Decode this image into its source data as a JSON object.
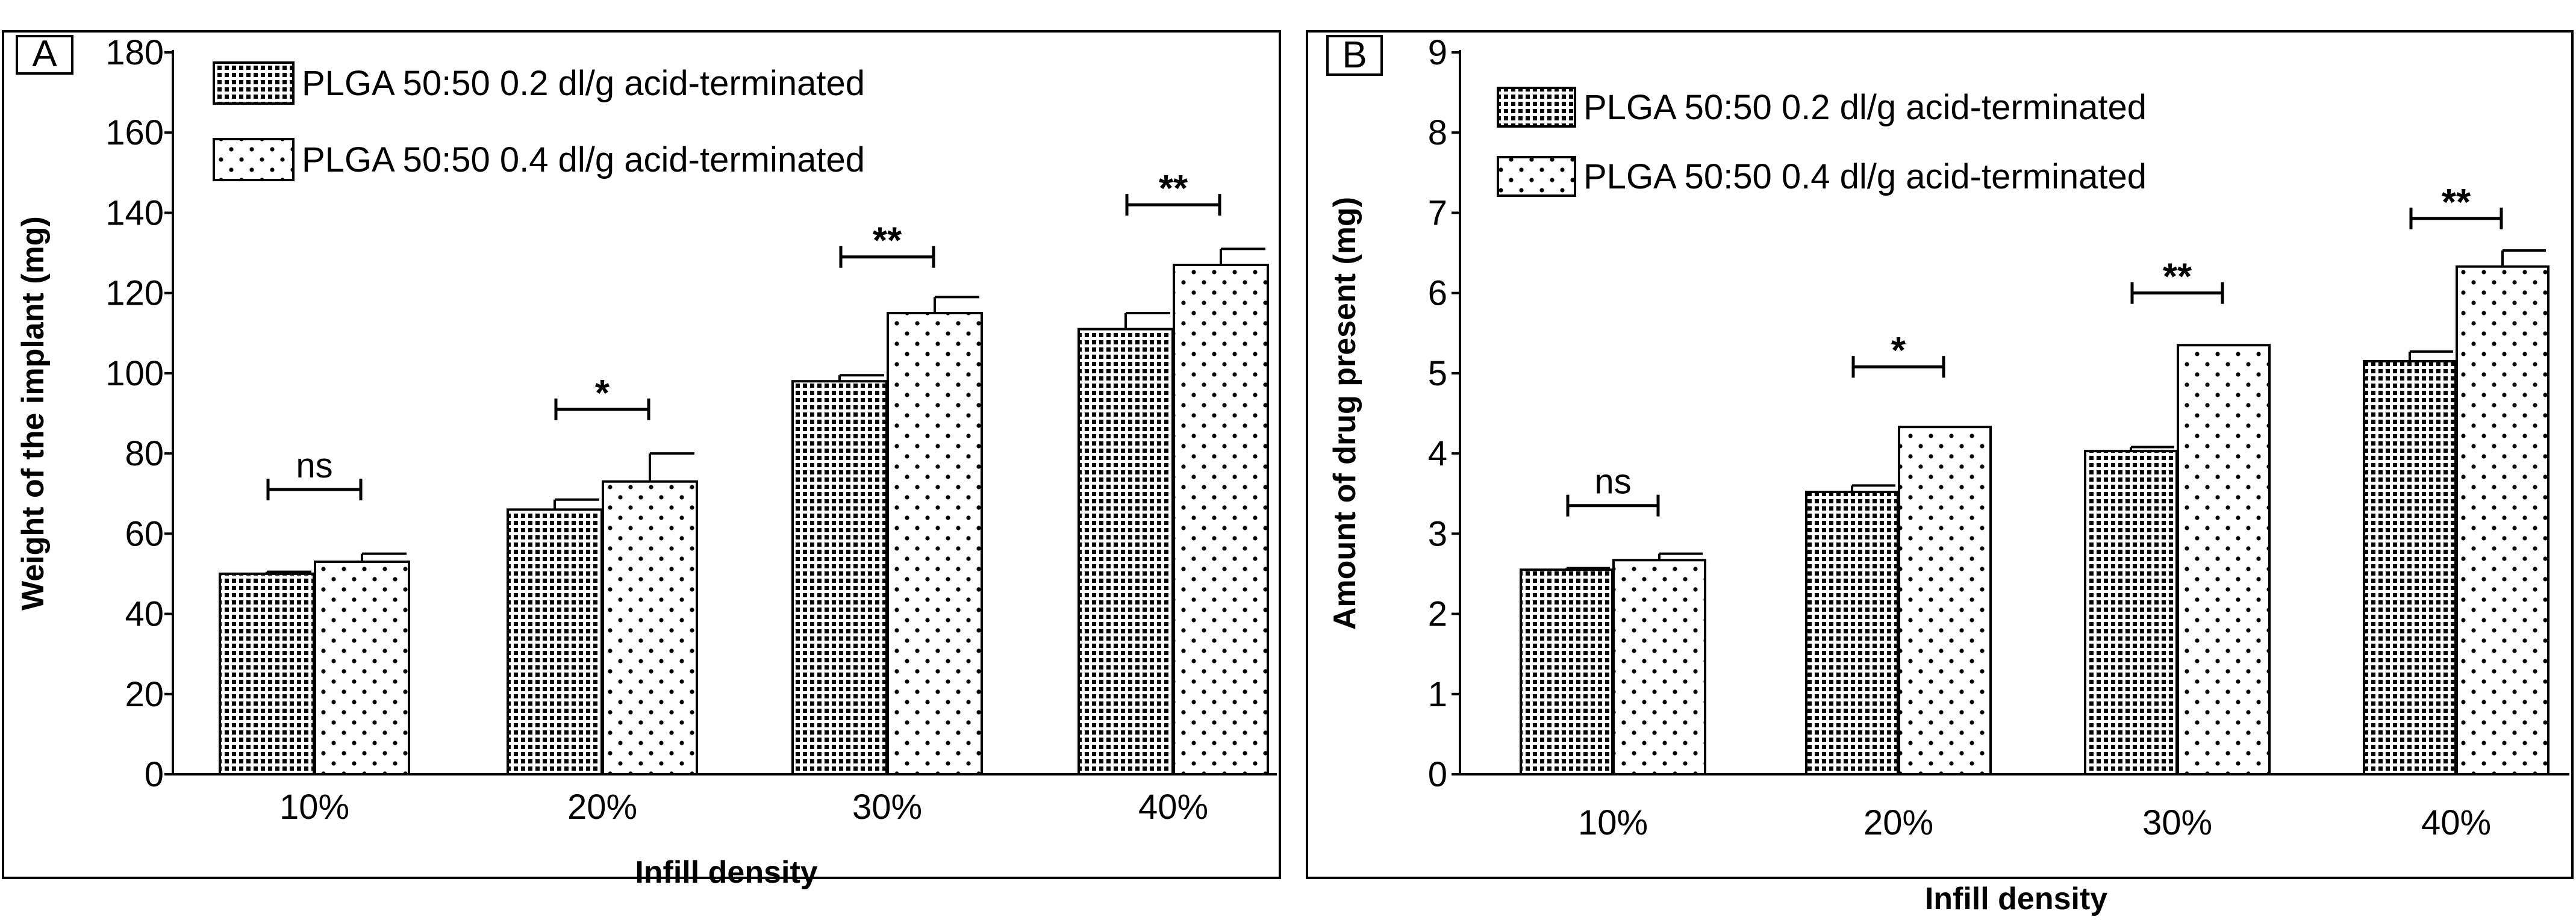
{
  "chart_data": [
    {
      "panel_label": "A",
      "type": "bar",
      "xlabel": "Infill density",
      "ylabel": "Weight of the implant (mg)",
      "ylim": [
        0,
        180
      ],
      "yticks": [
        "0",
        "20",
        "40",
        "60",
        "80",
        "100",
        "120",
        "140",
        "160",
        "180"
      ],
      "categories": [
        "10%",
        "20%",
        "30%",
        "40%"
      ],
      "series": [
        {
          "name": "PLGA 50:50 0.2 dl/g acid-terminated",
          "values": [
            50,
            66,
            98,
            111
          ],
          "errors": [
            0.5,
            2.5,
            1.5,
            4
          ]
        },
        {
          "name": "PLGA 50:50 0.4 dl/g acid-terminated",
          "values": [
            53,
            73,
            115,
            127
          ],
          "errors": [
            2,
            7,
            4,
            4
          ]
        }
      ],
      "significance": [
        {
          "label": "ns",
          "y": 71
        },
        {
          "label": "*",
          "y": 91
        },
        {
          "label": "**",
          "y": 129
        },
        {
          "label": "**",
          "y": 142
        }
      ],
      "legend_position": "top-left"
    },
    {
      "panel_label": "B",
      "type": "bar",
      "xlabel": "Infill density",
      "ylabel": "Amount of drug present (mg)",
      "ylim": [
        0,
        9
      ],
      "yticks": [
        "0",
        "1",
        "2",
        "3",
        "4",
        "5",
        "6",
        "7",
        "8",
        "9"
      ],
      "categories": [
        "10%",
        "20%",
        "30%",
        "40%"
      ],
      "series": [
        {
          "name": "PLGA 50:50 0.2 dl/g acid-terminated",
          "values": [
            2.55,
            3.52,
            4.03,
            5.15
          ],
          "errors": [
            0.02,
            0.08,
            0.05,
            0.12
          ]
        },
        {
          "name": "PLGA 50:50 0.4 dl/g acid-terminated",
          "values": [
            2.67,
            4.33,
            5.35,
            6.33
          ],
          "errors": [
            0.08,
            0.0,
            0.0,
            0.2
          ]
        }
      ],
      "significance": [
        {
          "label": "ns",
          "y": 3.35
        },
        {
          "label": "*",
          "y": 5.08
        },
        {
          "label": "**",
          "y": 6.0
        },
        {
          "label": "**",
          "y": 6.93
        }
      ],
      "legend_position": "top-left"
    }
  ]
}
